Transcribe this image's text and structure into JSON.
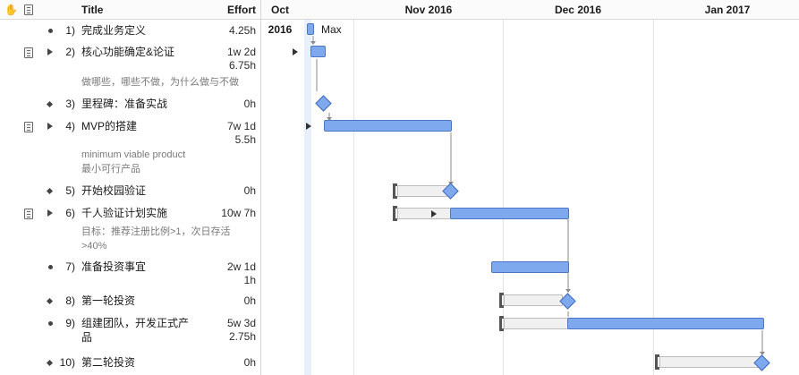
{
  "header": {
    "title_col": "Title",
    "effort_col": "Effort"
  },
  "tasks": [
    {
      "num": "1)",
      "title": "完成业务定义",
      "effort": "4.25h"
    },
    {
      "num": "2)",
      "title": "核心功能确定&论证",
      "effort_line1": "1w 2d",
      "effort_line2": "6.75h",
      "note": "做哪些，哪些不做，为什么做与不做"
    },
    {
      "num": "3)",
      "title": "里程碑：准备实战",
      "effort": "0h"
    },
    {
      "num": "4)",
      "title": "MVP的搭建",
      "effort_line1": "7w 1d",
      "effort_line2": "5.5h",
      "note_line1": "minimum viable product",
      "note_line2": "最小可行产品"
    },
    {
      "num": "5)",
      "title": "开始校园验证",
      "effort": "0h"
    },
    {
      "num": "6)",
      "title": "千人验证计划实施",
      "effort": "10w 7h",
      "note_line1": "目标：推荐注册比例>1，次日存活",
      "note_line2": ">40%"
    },
    {
      "num": "7)",
      "title": "准备投资事宜",
      "effort_line1": "2w 1d",
      "effort_line2": "1h"
    },
    {
      "num": "8)",
      "title": "第一轮投资",
      "effort": "0h"
    },
    {
      "num": "9)",
      "title_line1": "组建团队，开发正式产",
      "title_line2": "品",
      "effort_line1": "5w 3d",
      "effort_line2": "2.75h"
    },
    {
      "num": "10)",
      "title": "第二轮投资",
      "effort": "0h"
    }
  ],
  "timeline": {
    "months": [
      "Oct 2016",
      "Nov 2016",
      "Dec 2016",
      "Jan 2017"
    ],
    "resource_label": "Max"
  },
  "colors": {
    "bar_fill": "#7ea9ee",
    "bar_border": "#4b76c4",
    "slack": "#f0f0f0",
    "today_band": "#e7f0fb"
  }
}
